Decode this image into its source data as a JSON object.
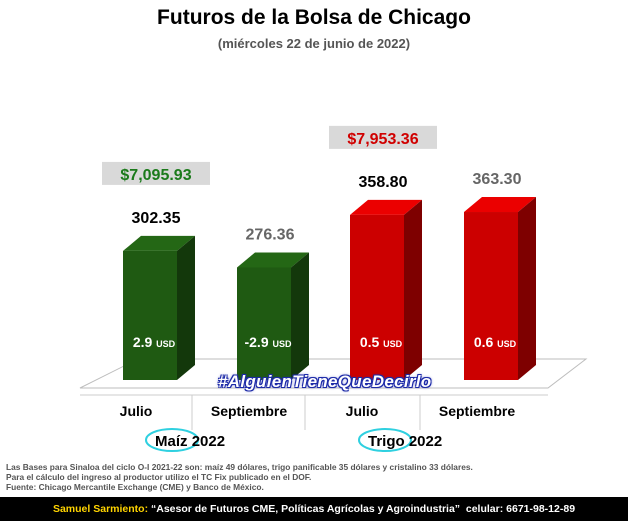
{
  "title": "Futuros de la Bolsa de Chicago",
  "subtitle": "(miércoles 22 de junio de 2022)",
  "hashtag": "#AlguienTieneQueDecirlo",
  "chart_data": {
    "type": "bar",
    "categories": [
      "Julio",
      "Septiembre",
      "Julio",
      "Septiembre"
    ],
    "groups": [
      {
        "name": "Maíz",
        "year": "2022",
        "color": "#1f5a12"
      },
      {
        "name": "Trigo",
        "year": "2022",
        "color": "#cc0000"
      }
    ],
    "values": [
      302.35,
      276.36,
      358.8,
      363.3
    ],
    "value_labels": [
      "302.35",
      "276.36",
      "358.80",
      "363.30"
    ],
    "value_label_colors": [
      "#000000",
      "#666666",
      "#000000",
      "#666666"
    ],
    "bases": [
      "2.9",
      "-2.9",
      "0.5",
      "0.6"
    ],
    "bases_unit": "USD",
    "colors": [
      "#1f5a12",
      "#1f5a12",
      "#cc0000",
      "#cc0000"
    ],
    "price_labels": [
      {
        "text": "$7,095.93",
        "bar_index": 0,
        "color": "#1b7a1b"
      },
      {
        "text": "$7,953.36",
        "bar_index": 2,
        "color": "#d00000"
      }
    ]
  },
  "notes": [
    "Las Bases para Sinaloa del ciclo O-I 2021-22 son: maíz 49 dólares, trigo panificable 35 dólares y cristalino 33 dólares.",
    "Para el cálculo del ingreso al productor utilizo el TC Fix publicado en el DOF.",
    "Fuente: Chicago Mercantile Exchange (CME) y Banco de México."
  ],
  "footer": {
    "author": "Samuel Sarmiento:",
    "text": " “Asesor de Futuros CME, Políticas Agrícolas y Agroindustria”  celular: 6671-98-12-89"
  }
}
